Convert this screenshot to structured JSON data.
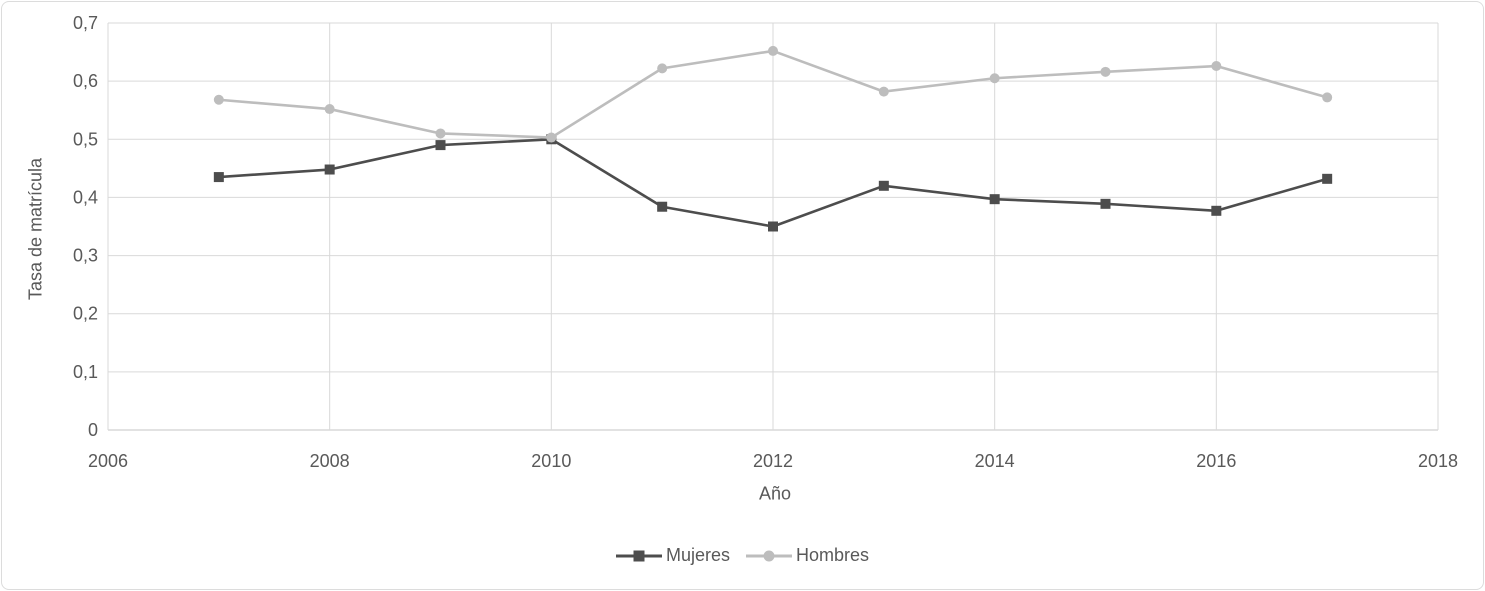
{
  "chart_data": {
    "type": "line",
    "title": "",
    "xlabel": "Año",
    "ylabel": "Tasa de matrícula",
    "x": [
      2007,
      2008,
      2009,
      2010,
      2011,
      2012,
      2013,
      2014,
      2015,
      2016,
      2017
    ],
    "series": [
      {
        "name": "Mujeres",
        "marker": "square",
        "color": "#4d4d4d",
        "values": [
          0.435,
          0.448,
          0.49,
          0.5,
          0.384,
          0.35,
          0.42,
          0.397,
          0.389,
          0.377,
          0.432
        ]
      },
      {
        "name": "Hombres",
        "marker": "circle",
        "color": "#bdbdbd",
        "values": [
          0.568,
          0.552,
          0.51,
          0.503,
          0.622,
          0.652,
          0.582,
          0.605,
          0.616,
          0.626,
          0.572
        ]
      }
    ],
    "xlim": [
      2006,
      2018
    ],
    "ylim": [
      0,
      0.7
    ],
    "x_ticks": [
      2006,
      2008,
      2010,
      2012,
      2014,
      2016,
      2018
    ],
    "x_tick_labels": [
      "2006",
      "2008",
      "2010",
      "2012",
      "2014",
      "2016",
      "2018"
    ],
    "y_ticks": [
      0,
      0.1,
      0.2,
      0.3,
      0.4,
      0.5,
      0.6,
      0.7
    ],
    "y_tick_labels": [
      "0",
      "0,1",
      "0,2",
      "0,3",
      "0,4",
      "0,5",
      "0,6",
      "0,7"
    ],
    "grid": true,
    "legend_position": "bottom"
  },
  "colors": {
    "gridline": "#d9d9d9",
    "axis_line": "#c6c6c6",
    "axis_text": "#595959",
    "background": "#ffffff"
  }
}
